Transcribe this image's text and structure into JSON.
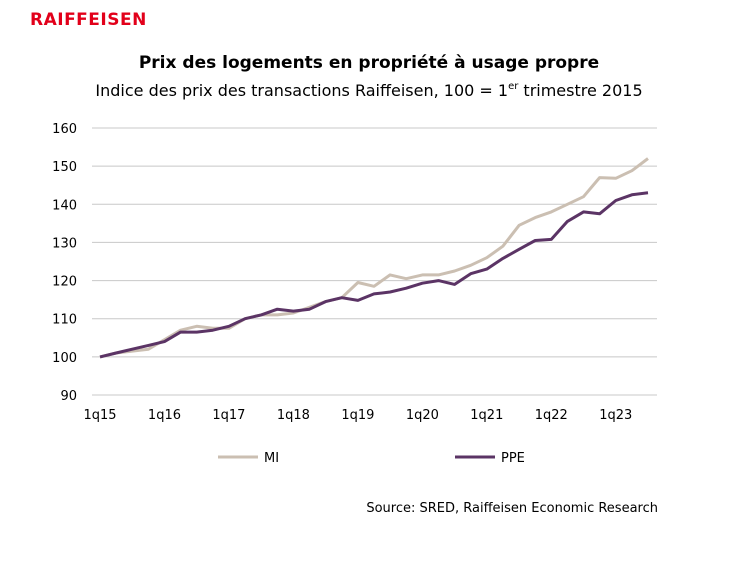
{
  "brand": "RAIFFEISEN",
  "chart_data": {
    "type": "line",
    "title": "Prix des logements en propriété à usage propre",
    "subtitle": [
      "Indice des prix des transactions Raiffeisen, 100 = 1",
      "er",
      " trimestre 2015"
    ],
    "categories": [
      "1q15",
      null,
      null,
      null,
      "1q16",
      null,
      null,
      null,
      "1q17",
      null,
      null,
      null,
      "1q18",
      null,
      null,
      null,
      "1q19",
      null,
      null,
      null,
      "1q20",
      null,
      null,
      null,
      "1q21",
      null,
      null,
      null,
      "1q22",
      null,
      null,
      null,
      "1q23",
      null,
      null
    ],
    "series": [
      {
        "name": "MI",
        "color": "#cbbfb2",
        "values": [
          100,
          101,
          101.5,
          102,
          104.5,
          107,
          108,
          107.5,
          107.5,
          110,
          111,
          111,
          111.5,
          113,
          114.5,
          115.5,
          119.5,
          118.5,
          121.5,
          120.5,
          121.5,
          121.5,
          122.5,
          124,
          126,
          129,
          134.5,
          136.5,
          138,
          140,
          142,
          147,
          146.8,
          148.8,
          152
        ]
      },
      {
        "name": "PPE",
        "color": "#5b3465",
        "values": [
          100,
          101,
          102,
          103,
          104,
          106.5,
          106.5,
          107,
          108,
          110,
          111,
          112.5,
          112,
          112.5,
          114.5,
          115.5,
          114.8,
          116.5,
          117,
          118,
          119.3,
          120,
          119,
          121.8,
          123,
          125.8,
          128.2,
          130.5,
          130.8,
          135.5,
          138,
          137.5,
          141,
          142.5,
          143
        ]
      }
    ],
    "ylim": [
      90,
      160
    ],
    "yticks": [
      90,
      100,
      110,
      120,
      130,
      140,
      150,
      160
    ],
    "grid": true,
    "source": "Source: SRED, Raiffeisen Economic Research"
  }
}
